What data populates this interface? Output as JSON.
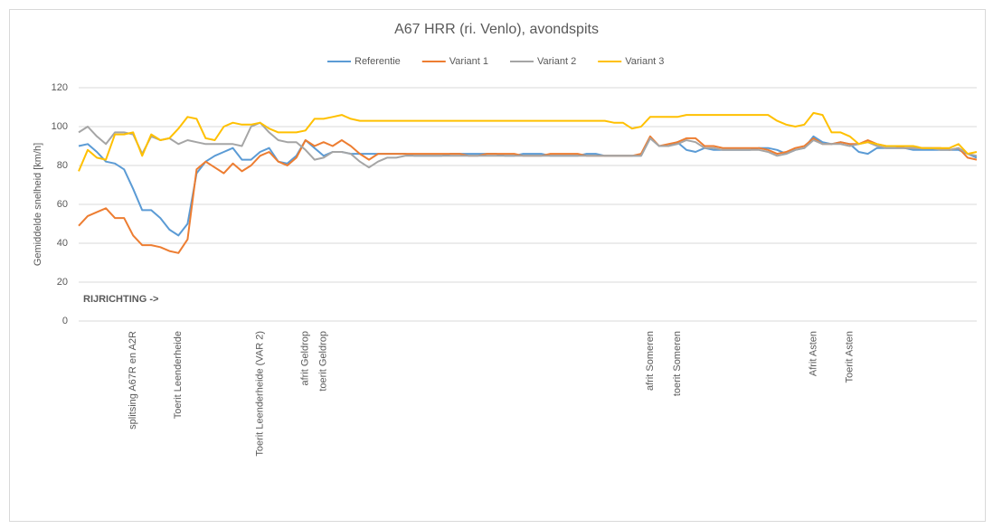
{
  "chart_data": {
    "type": "line",
    "title": "A67 HRR (ri. Venlo), avondspits",
    "ylabel": "Gemiddelde snelheid [km/h]",
    "annotation": "RIJRICHTING ->",
    "ylim": [
      0,
      120
    ],
    "yticks": [
      0,
      20,
      40,
      60,
      80,
      100,
      120
    ],
    "grid": true,
    "legend": "top",
    "categories": [
      null,
      null,
      null,
      null,
      null,
      null,
      "splitsing A67R en A2R",
      null,
      null,
      null,
      null,
      "Toerit Leenderheide",
      null,
      null,
      null,
      null,
      null,
      null,
      null,
      null,
      "Toerit Leenderheide (VAR 2)",
      null,
      null,
      null,
      null,
      "afrit Geldrop",
      null,
      "toerit Geldrop",
      null,
      null,
      null,
      null,
      null,
      null,
      null,
      null,
      null,
      null,
      null,
      null,
      null,
      null,
      null,
      null,
      null,
      null,
      null,
      null,
      null,
      null,
      null,
      null,
      null,
      null,
      null,
      null,
      null,
      null,
      null,
      null,
      null,
      null,
      null,
      "afrit Someren",
      null,
      null,
      "toerit Someren",
      null,
      null,
      null,
      null,
      null,
      null,
      null,
      null,
      null,
      null,
      null,
      null,
      null,
      null,
      "Afrit Asten",
      null,
      null,
      null,
      "Toerit Asten",
      null,
      null,
      null,
      null,
      null,
      null,
      null,
      null,
      null,
      null,
      null,
      null,
      null,
      null
    ],
    "series": [
      {
        "name": "Referentie",
        "color": "#5b9bd5",
        "values": [
          90,
          91,
          87,
          82,
          81,
          78,
          68,
          57,
          57,
          53,
          47,
          44,
          50,
          76,
          82,
          85,
          87,
          89,
          83,
          83,
          87,
          89,
          82,
          81,
          85,
          93,
          89,
          85,
          87,
          87,
          86,
          86,
          86,
          86,
          86,
          86,
          86,
          85,
          85,
          85,
          85,
          86,
          86,
          86,
          86,
          86,
          86,
          85,
          85,
          86,
          86,
          86,
          85,
          85,
          85,
          85,
          86,
          86,
          85,
          85,
          85,
          85,
          85,
          94,
          90,
          90,
          92,
          88,
          87,
          89,
          88,
          88,
          88,
          88,
          88,
          89,
          89,
          88,
          86,
          88,
          89,
          95,
          92,
          91,
          92,
          91,
          87,
          86,
          89,
          89,
          89,
          89,
          88,
          88,
          88,
          88,
          88,
          88,
          86,
          84
        ]
      },
      {
        "name": "Variant 1",
        "color": "#ed7d31",
        "values": [
          49,
          54,
          56,
          58,
          53,
          53,
          44,
          39,
          39,
          38,
          36,
          35,
          42,
          78,
          82,
          79,
          76,
          81,
          77,
          80,
          85,
          87,
          82,
          80,
          84,
          93,
          90,
          92,
          90,
          93,
          90,
          86,
          83,
          86,
          86,
          86,
          86,
          86,
          86,
          86,
          86,
          86,
          86,
          85,
          85,
          86,
          86,
          86,
          86,
          85,
          85,
          85,
          86,
          86,
          86,
          86,
          85,
          85,
          85,
          85,
          85,
          85,
          86,
          95,
          90,
          91,
          92,
          94,
          94,
          90,
          90,
          89,
          89,
          89,
          89,
          89,
          88,
          86,
          87,
          89,
          90,
          94,
          91,
          91,
          92,
          91,
          91,
          93,
          91,
          90,
          90,
          89,
          89,
          89,
          89,
          89,
          88,
          89,
          84,
          83
        ]
      },
      {
        "name": "Variant 2",
        "color": "#a5a5a5",
        "values": [
          97,
          100,
          95,
          91,
          97,
          97,
          96,
          86,
          95,
          93,
          94,
          91,
          93,
          92,
          91,
          91,
          91,
          91,
          90,
          100,
          102,
          97,
          93,
          92,
          92,
          88,
          83,
          84,
          87,
          87,
          86,
          82,
          79,
          82,
          84,
          84,
          85,
          85,
          85,
          85,
          85,
          85,
          85,
          85,
          85,
          85,
          85,
          85,
          85,
          85,
          85,
          85,
          85,
          85,
          85,
          85,
          85,
          85,
          85,
          85,
          85,
          85,
          85,
          94,
          90,
          90,
          91,
          93,
          92,
          89,
          89,
          88,
          88,
          88,
          88,
          88,
          87,
          85,
          86,
          88,
          89,
          93,
          91,
          91,
          91,
          90,
          91,
          92,
          90,
          89,
          89,
          89,
          89,
          89,
          89,
          88,
          88,
          89,
          86,
          85
        ]
      },
      {
        "name": "Variant 3",
        "color": "#ffc000",
        "values": [
          77,
          88,
          84,
          83,
          96,
          96,
          97,
          85,
          96,
          93,
          94,
          99,
          105,
          104,
          94,
          93,
          100,
          102,
          101,
          101,
          102,
          99,
          97,
          97,
          97,
          98,
          104,
          104,
          105,
          106,
          104,
          103,
          103,
          103,
          103,
          103,
          103,
          103,
          103,
          103,
          103,
          103,
          103,
          103,
          103,
          103,
          103,
          103,
          103,
          103,
          103,
          103,
          103,
          103,
          103,
          103,
          103,
          103,
          103,
          102,
          102,
          99,
          100,
          105,
          105,
          105,
          105,
          106,
          106,
          106,
          106,
          106,
          106,
          106,
          106,
          106,
          106,
          103,
          101,
          100,
          101,
          107,
          106,
          97,
          97,
          95,
          91,
          92,
          91,
          90,
          90,
          90,
          90,
          89,
          89,
          89,
          89,
          91,
          86,
          87
        ]
      }
    ]
  }
}
